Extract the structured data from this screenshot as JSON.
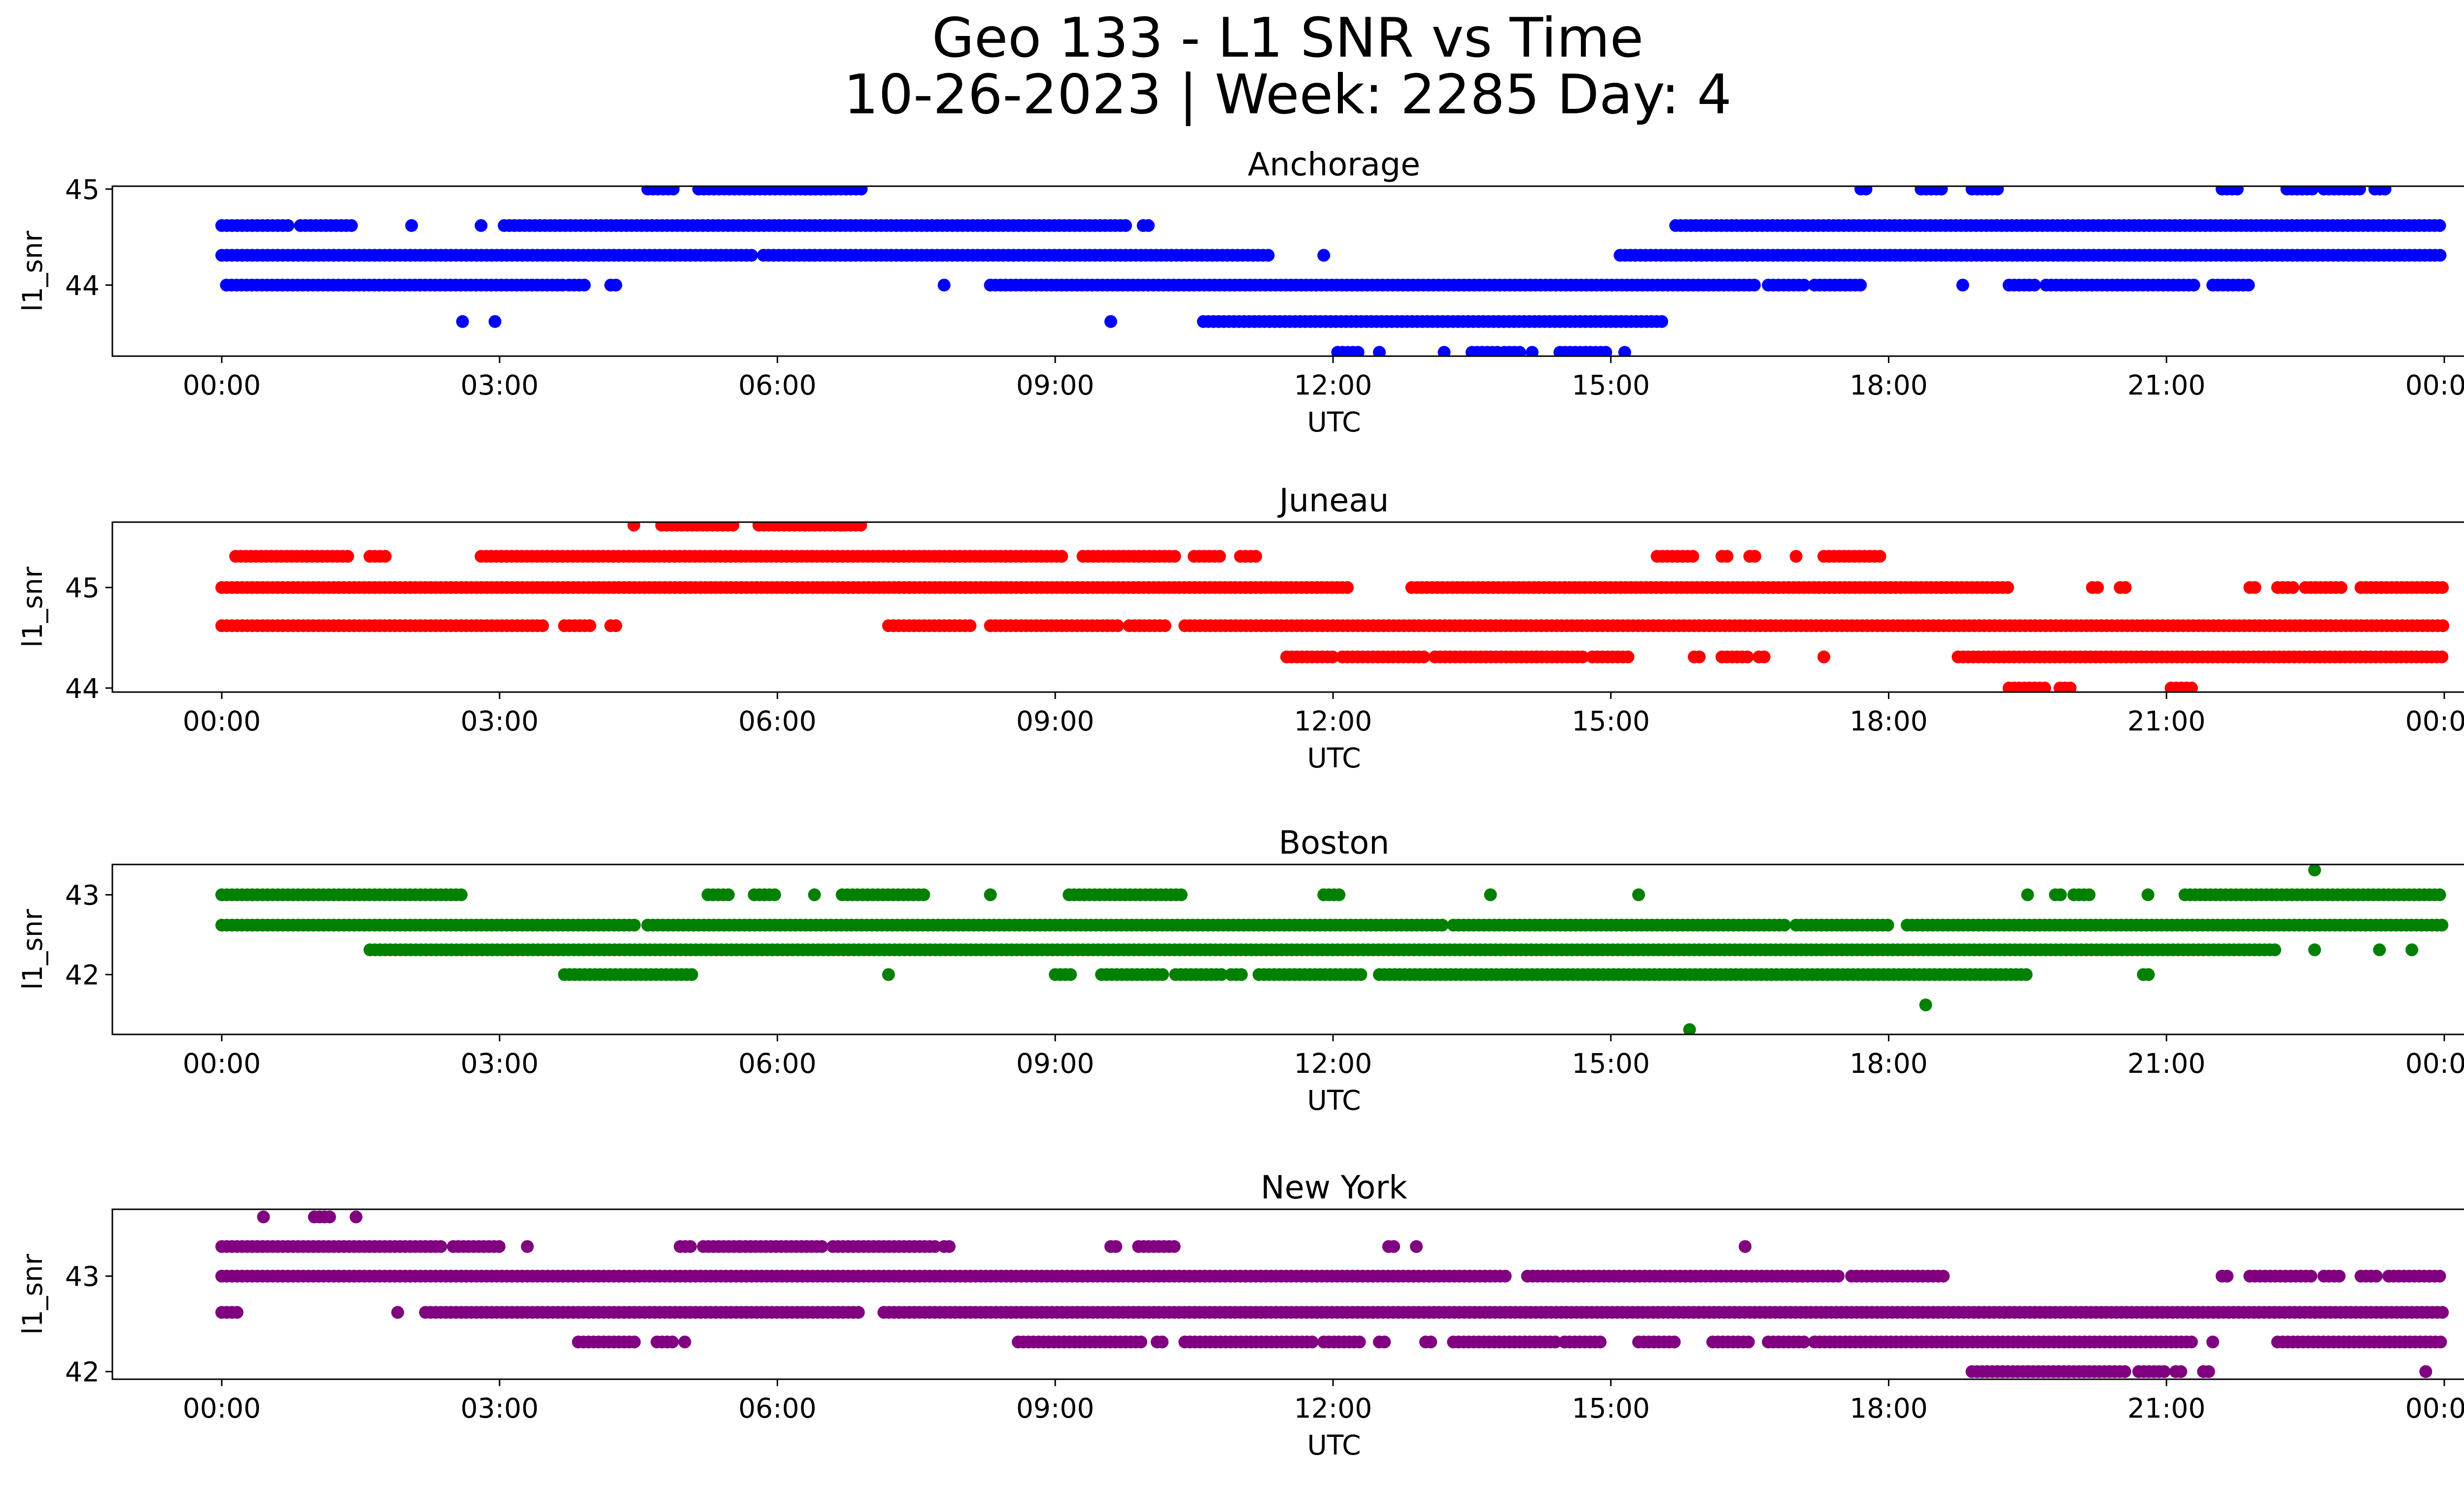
{
  "figure": {
    "title_line1": "Geo 133 - L1 SNR vs Time",
    "title_line2": "10-26-2023 | Week: 2285 Day: 4"
  },
  "chart_data": [
    {
      "type": "scatter",
      "title": "Anchorage",
      "xlabel": "UTC",
      "ylabel": "l1_snr",
      "color": "#0000ff",
      "xlim": [
        "00:00",
        "24:00"
      ],
      "xticks": [
        "00:00",
        "03:00",
        "06:00",
        "09:00",
        "12:00",
        "15:00",
        "18:00",
        "21:00",
        "00:00"
      ],
      "ylim": [
        43.26,
        45.03
      ],
      "yticks": [
        44,
        45
      ],
      "series": [
        {
          "y": 45.0,
          "segments": [
            [
              4.6,
              4.9
            ],
            [
              5.15,
              6.6
            ],
            [
              6.3,
              6.95
            ],
            [
              17.7,
              17.8
            ],
            [
              18.35,
              18.6
            ],
            [
              18.9,
              19.2
            ],
            [
              21.6,
              21.8
            ],
            [
              22.3,
              22.6
            ],
            [
              22.7,
              23.1
            ],
            [
              23.25,
              23.4
            ]
          ]
        },
        {
          "y": 44.62,
          "segments": [
            [
              0.0,
              0.75
            ],
            [
              0.85,
              1.4
            ],
            [
              2.05,
              2.1
            ],
            [
              2.8,
              2.85
            ],
            [
              3.05,
              9.8
            ],
            [
              9.95,
              10.05
            ],
            [
              15.7,
              24.0
            ]
          ]
        },
        {
          "y": 44.31,
          "segments": [
            [
              0.0,
              5.75
            ],
            [
              5.85,
              6.4
            ],
            [
              6.35,
              11.3
            ],
            [
              11.9,
              11.95
            ],
            [
              15.1,
              24.0
            ]
          ]
        },
        {
          "y": 44.0,
          "segments": [
            [
              0.05,
              3.7
            ],
            [
              3.75,
              3.95
            ],
            [
              4.2,
              4.3
            ],
            [
              7.8,
              7.85
            ],
            [
              8.3,
              16.6
            ],
            [
              16.7,
              17.1
            ],
            [
              17.2,
              17.7
            ],
            [
              18.8,
              18.85
            ],
            [
              19.3,
              19.6
            ],
            [
              19.7,
              21.3
            ],
            [
              21.5,
              21.9
            ]
          ]
        },
        {
          "y": 43.62,
          "segments": [
            [
              2.6,
              2.65
            ],
            [
              2.95,
              3.0
            ],
            [
              9.6,
              9.65
            ],
            [
              10.6,
              15.55
            ]
          ]
        },
        {
          "y": 43.3,
          "segments": [
            [
              12.05,
              12.3
            ],
            [
              12.5,
              12.55
            ],
            [
              13.2,
              13.25
            ],
            [
              13.5,
              13.8
            ],
            [
              13.85,
              14.05
            ],
            [
              14.15,
              14.2
            ],
            [
              14.45,
              14.95
            ],
            [
              15.15,
              15.2
            ]
          ]
        }
      ]
    },
    {
      "type": "scatter",
      "title": "Juneau",
      "xlabel": "UTC",
      "ylabel": "l1_snr",
      "color": "#ff0000",
      "xlim": [
        "00:00",
        "24:00"
      ],
      "xticks": [
        "00:00",
        "03:00",
        "06:00",
        "09:00",
        "12:00",
        "15:00",
        "18:00",
        "21:00",
        "00:00"
      ],
      "ylim": [
        43.96,
        45.65
      ],
      "yticks": [
        44,
        45
      ],
      "series": [
        {
          "y": 45.62,
          "segments": [
            [
              4.45,
              4.5
            ],
            [
              4.75,
              5.55
            ],
            [
              5.8,
              6.95
            ],
            [
              6.7,
              6.75
            ]
          ]
        },
        {
          "y": 45.31,
          "segments": [
            [
              0.15,
              1.4
            ],
            [
              1.6,
              1.8
            ],
            [
              2.8,
              9.1
            ],
            [
              9.3,
              10.3
            ],
            [
              10.5,
              10.8
            ],
            [
              11.0,
              11.2
            ],
            [
              15.5,
              15.9
            ],
            [
              16.2,
              16.3
            ],
            [
              16.5,
              16.6
            ],
            [
              17.0,
              17.05
            ],
            [
              17.3,
              17.95
            ]
          ]
        },
        {
          "y": 45.0,
          "segments": [
            [
              0.0,
              12.2
            ],
            [
              12.85,
              19.3
            ],
            [
              20.2,
              20.3
            ],
            [
              20.5,
              20.6
            ],
            [
              21.9,
              22.0
            ],
            [
              22.2,
              22.4
            ],
            [
              22.5,
              22.9
            ],
            [
              23.1,
              24.0
            ]
          ]
        },
        {
          "y": 44.62,
          "segments": [
            [
              0.0,
              3.5
            ],
            [
              3.7,
              4.0
            ],
            [
              4.2,
              4.3
            ],
            [
              7.2,
              8.1
            ],
            [
              8.3,
              9.7
            ],
            [
              9.8,
              10.2
            ],
            [
              10.4,
              24.0
            ]
          ]
        },
        {
          "y": 44.31,
          "segments": [
            [
              11.5,
              12.0
            ],
            [
              12.1,
              13.0
            ],
            [
              13.1,
              14.2
            ],
            [
              14.2,
              14.7
            ],
            [
              14.8,
              15.2
            ],
            [
              15.9,
              16.0
            ],
            [
              16.2,
              16.5
            ],
            [
              16.6,
              16.7
            ],
            [
              17.3,
              17.35
            ],
            [
              18.75,
              24.0
            ]
          ]
        },
        {
          "y": 44.0,
          "segments": [
            [
              19.3,
              19.7
            ],
            [
              19.85,
              20.0
            ],
            [
              21.05,
              21.3
            ]
          ]
        }
      ]
    },
    {
      "type": "scatter",
      "title": "Boston",
      "xlabel": "UTC",
      "ylabel": "l1_snr",
      "color": "#008000",
      "xlim": [
        "00:00",
        "24:00"
      ],
      "xticks": [
        "00:00",
        "03:00",
        "06:00",
        "09:00",
        "12:00",
        "15:00",
        "18:00",
        "21:00",
        "00:00"
      ],
      "ylim": [
        41.25,
        43.38
      ],
      "yticks": [
        42,
        43
      ],
      "series": [
        {
          "y": 43.31,
          "segments": [
            [
              22.6,
              22.65
            ]
          ]
        },
        {
          "y": 43.0,
          "segments": [
            [
              0.0,
              2.6
            ],
            [
              5.25,
              5.5
            ],
            [
              5.75,
              6.0
            ],
            [
              6.4,
              6.45
            ],
            [
              6.7,
              7.6
            ],
            [
              8.3,
              8.35
            ],
            [
              9.15,
              10.4
            ],
            [
              11.9,
              12.1
            ],
            [
              13.7,
              13.75
            ],
            [
              15.3,
              15.35
            ],
            [
              19.5,
              19.55
            ],
            [
              19.8,
              19.9
            ],
            [
              20.0,
              20.2
            ],
            [
              20.8,
              20.85
            ],
            [
              21.2,
              24.0
            ]
          ]
        },
        {
          "y": 42.62,
          "segments": [
            [
              0.0,
              4.5
            ],
            [
              4.6,
              13.2
            ],
            [
              13.3,
              13.8
            ],
            [
              13.85,
              16.9
            ],
            [
              17.0,
              18.0
            ],
            [
              18.2,
              24.0
            ]
          ]
        },
        {
          "y": 42.31,
          "segments": [
            [
              1.6,
              22.2
            ],
            [
              22.6,
              22.65
            ],
            [
              23.3,
              23.35
            ],
            [
              23.65,
              23.7
            ]
          ]
        },
        {
          "y": 42.0,
          "segments": [
            [
              3.7,
              5.1
            ],
            [
              7.2,
              7.25
            ],
            [
              9.0,
              9.2
            ],
            [
              9.5,
              10.2
            ],
            [
              10.3,
              10.8
            ],
            [
              10.9,
              11.05
            ],
            [
              11.2,
              12.3
            ],
            [
              12.5,
              19.5
            ],
            [
              20.75,
              20.85
            ]
          ]
        },
        {
          "y": 41.62,
          "segments": [
            [
              18.4,
              18.45
            ]
          ]
        },
        {
          "y": 41.31,
          "segments": [
            [
              15.85,
              15.9
            ]
          ]
        }
      ]
    },
    {
      "type": "scatter",
      "title": "New York",
      "xlabel": "UTC",
      "ylabel": "l1_snr",
      "color": "#800080",
      "xlim": [
        "00:00",
        "24:00"
      ],
      "xticks": [
        "00:00",
        "03:00",
        "06:00",
        "09:00",
        "12:00",
        "15:00",
        "18:00",
        "21:00",
        "00:00"
      ],
      "ylim": [
        41.92,
        43.7
      ],
      "yticks": [
        42,
        43
      ],
      "series": [
        {
          "y": 43.62,
          "segments": [
            [
              0.45,
              0.5
            ],
            [
              1.0,
              1.2
            ],
            [
              1.45,
              1.5
            ]
          ]
        },
        {
          "y": 43.31,
          "segments": [
            [
              0.0,
              2.4
            ],
            [
              2.5,
              3.0
            ],
            [
              3.3,
              3.35
            ],
            [
              4.95,
              5.1
            ],
            [
              5.2,
              5.6
            ],
            [
              5.6,
              6.5
            ],
            [
              6.6,
              7.7
            ],
            [
              7.8,
              7.9
            ],
            [
              9.6,
              9.7
            ],
            [
              9.9,
              10.3
            ],
            [
              12.6,
              12.7
            ],
            [
              12.9,
              12.95
            ],
            [
              16.45,
              16.5
            ]
          ]
        },
        {
          "y": 43.0,
          "segments": [
            [
              0.0,
              13.9
            ],
            [
              14.1,
              17.5
            ],
            [
              17.6,
              18.6
            ],
            [
              21.6,
              21.7
            ],
            [
              21.9,
              22.6
            ],
            [
              22.7,
              22.9
            ],
            [
              23.1,
              23.3
            ],
            [
              23.4,
              24.0
            ]
          ]
        },
        {
          "y": 42.62,
          "segments": [
            [
              0.0,
              0.2
            ],
            [
              1.9,
              1.95
            ],
            [
              2.2,
              6.9
            ],
            [
              7.15,
              24.0
            ]
          ]
        },
        {
          "y": 42.31,
          "segments": [
            [
              3.85,
              4.5
            ],
            [
              4.7,
              4.9
            ],
            [
              5.0,
              5.05
            ],
            [
              8.6,
              9.1
            ],
            [
              9.1,
              9.95
            ],
            [
              10.1,
              10.2
            ],
            [
              10.4,
              11.8
            ],
            [
              11.9,
              12.3
            ],
            [
              12.5,
              12.6
            ],
            [
              13.0,
              13.1
            ],
            [
              13.3,
              14.4
            ],
            [
              14.5,
              14.9
            ],
            [
              15.3,
              15.7
            ],
            [
              16.1,
              16.5
            ],
            [
              16.7,
              17.1
            ],
            [
              17.2,
              21.3
            ],
            [
              21.5,
              21.55
            ],
            [
              22.2,
              24.0
            ]
          ]
        },
        {
          "y": 42.0,
          "segments": [
            [
              18.9,
              20.6
            ],
            [
              20.7,
              21.0
            ],
            [
              21.1,
              21.2
            ],
            [
              21.4,
              21.5
            ],
            [
              23.8,
              23.85
            ]
          ]
        }
      ]
    }
  ]
}
